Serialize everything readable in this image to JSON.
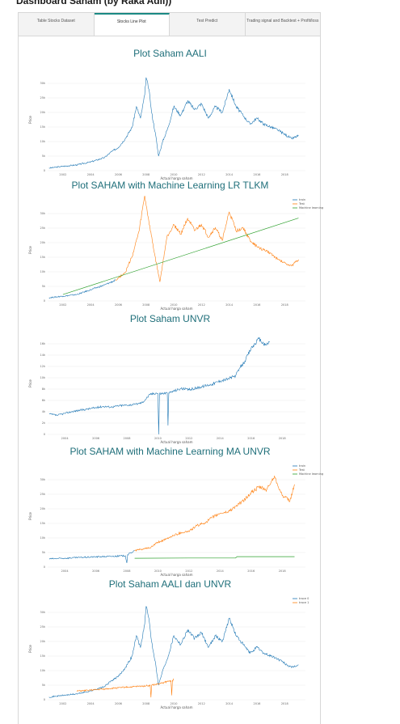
{
  "page": {
    "title": "Dashboard Saham (by Raka Adli))"
  },
  "tabs": [
    {
      "label": "Table Stocks Dataset",
      "active": false
    },
    {
      "label": "Stocks Line Plot",
      "active": true
    },
    {
      "label": "Test Predict",
      "active": false
    },
    {
      "label": "Trading signal and Backtest + Profit/loss",
      "active": false
    }
  ],
  "colors": {
    "blue": "#1f77b4",
    "orange": "#ff7f0e",
    "green": "#2ca02c",
    "title": "#1f6f7a",
    "tab_accent": "#1b8a84"
  },
  "chart_data": [
    {
      "type": "line",
      "title": "Plot Saham AALI",
      "xlabel": "Actual harga saham",
      "ylabel": "Price",
      "x_ticks": [
        "2002",
        "2004",
        "2006",
        "2008",
        "2010",
        "2012",
        "2014",
        "2016",
        "2018"
      ],
      "y_ticks": [
        "0",
        "5k",
        "10k",
        "15k",
        "20k",
        "25k",
        "30k"
      ],
      "ylim": [
        0,
        35000
      ],
      "series": [
        {
          "color": "#1f77b4",
          "x": [
            2001,
            2002,
            2003,
            2004,
            2005,
            2005.5,
            2006,
            2006.5,
            2007,
            2007.3,
            2007.6,
            2007.9,
            2008.0,
            2008.2,
            2008.4,
            2008.7,
            2008.9,
            2009.2,
            2009.6,
            2010,
            2010.5,
            2011,
            2011.5,
            2012,
            2012.5,
            2013,
            2013.5,
            2014,
            2014.5,
            2015,
            2015.5,
            2016,
            2016.5,
            2017,
            2017.5,
            2018,
            2018.5,
            2019
          ],
          "y": [
            900,
            1500,
            2000,
            3000,
            4500,
            6500,
            8000,
            11000,
            15000,
            22000,
            18000,
            26000,
            32000,
            28000,
            20000,
            12000,
            5000,
            10000,
            15000,
            22000,
            19000,
            24000,
            21000,
            23000,
            18000,
            22000,
            20000,
            28000,
            22000,
            19000,
            16000,
            18000,
            16000,
            15000,
            14000,
            12500,
            11000,
            12000
          ]
        }
      ]
    },
    {
      "type": "line",
      "title": "Plot SAHAM with Machine Learning LR TLKM",
      "xlabel": "Actual harga saham",
      "ylabel": "Price",
      "x_ticks": [
        "2002",
        "2004",
        "2006",
        "2008",
        "2010",
        "2012",
        "2014",
        "2016",
        "2018"
      ],
      "y_ticks": [
        "0",
        "5k",
        "10k",
        "15k",
        "20k",
        "25k",
        "30k"
      ],
      "ylim": [
        0,
        32000
      ],
      "legend": [
        "train",
        "Test",
        "Machine learning"
      ],
      "legend_position": "top-right",
      "series": [
        {
          "name": "train",
          "color": "#1f77b4",
          "x": [
            2001,
            2002,
            2003,
            2004,
            2005,
            2005.8
          ],
          "y": [
            1000,
            1500,
            2000,
            3500,
            5000,
            6500
          ]
        },
        {
          "name": "Test",
          "color": "#ff7f0e",
          "x": [
            2005.8,
            2006.5,
            2007,
            2007.5,
            2007.9,
            2008.2,
            2008.6,
            2009,
            2009.5,
            2010,
            2010.5,
            2011,
            2011.5,
            2012,
            2012.5,
            2013,
            2013.5,
            2014,
            2014.5,
            2015,
            2015.5,
            2016,
            2016.5,
            2017,
            2017.5,
            2018,
            2018.5,
            2019
          ],
          "y": [
            6500,
            9000,
            14000,
            22000,
            33000,
            25000,
            15000,
            6000,
            20000,
            24000,
            21000,
            26000,
            22000,
            24000,
            20000,
            23000,
            19000,
            28000,
            22000,
            23000,
            19000,
            17000,
            16000,
            15000,
            13000,
            12000,
            11000,
            13000
          ]
        },
        {
          "name": "Machine learning",
          "color": "#2ca02c",
          "x": [
            2002,
            2019
          ],
          "y": [
            2000,
            26000
          ]
        }
      ]
    },
    {
      "type": "line",
      "title": "Plot Saham UNVR",
      "xlabel": "Actual harga saham",
      "ylabel": "Price",
      "x_ticks": [
        "2004",
        "2006",
        "2008",
        "2010",
        "2012",
        "2014",
        "2016",
        "2018"
      ],
      "y_ticks": [
        "0",
        "2k",
        "4k",
        "6k",
        "8k",
        "10k",
        "12k",
        "14k",
        "16k"
      ],
      "ylim": [
        0,
        16000
      ],
      "series": [
        {
          "color": "#1f77b4",
          "x": [
            2003,
            2003.5,
            2004,
            2004.5,
            2005,
            2005.5,
            2006,
            2006.5,
            2007,
            2007.5,
            2008,
            2008.5,
            2009,
            2009.5,
            2009.9,
            2010,
            2010.05,
            2010.1,
            2010.6,
            2010.65,
            2010.7,
            2011,
            2011.5,
            2012,
            2012.5,
            2013,
            2013.5,
            2014,
            2014.5,
            2015,
            2015.3,
            2015.6,
            2016,
            2016.5,
            2016.9,
            2017.2
          ],
          "y": [
            3200,
            3000,
            3300,
            3600,
            3800,
            4000,
            4200,
            4400,
            4300,
            4500,
            4600,
            4700,
            5000,
            6300,
            6500,
            6400,
            0,
            6400,
            6500,
            1400,
            6500,
            6800,
            7200,
            7000,
            7300,
            7600,
            7900,
            8400,
            8700,
            9200,
            10500,
            11500,
            13500,
            15000,
            14000,
            14500
          ]
        }
      ]
    },
    {
      "type": "line",
      "title": "Plot SAHAM with Machine Learning MA UNVR",
      "xlabel": "Actual harga saham",
      "ylabel": "Price",
      "x_ticks": [
        "2004",
        "2006",
        "2008",
        "2010",
        "2012",
        "2014",
        "2016",
        "2018"
      ],
      "y_ticks": [
        "0",
        "5k",
        "10k",
        "15k",
        "20k",
        "25k",
        "30k"
      ],
      "ylim": [
        0,
        37000
      ],
      "legend": [
        "train",
        "Test",
        "Machine learning"
      ],
      "legend_position": "top-right",
      "series": [
        {
          "name": "train",
          "color": "#1f77b4",
          "x": [
            2003,
            2004,
            2005,
            2006,
            2007,
            2007.9,
            2008,
            2008.05,
            2008.5
          ],
          "y": [
            3000,
            3200,
            3500,
            3700,
            3900,
            4100,
            1500,
            4500,
            6000
          ]
        },
        {
          "name": "Test",
          "color": "#ff7f0e",
          "x": [
            2008.5,
            2009,
            2009.5,
            2010,
            2010.5,
            2011,
            2011.5,
            2012,
            2012.5,
            2013,
            2013.5,
            2014,
            2014.5,
            2015,
            2015.5,
            2016,
            2016.5,
            2017,
            2017.5,
            2018,
            2018.5,
            2018.8
          ],
          "y": [
            6000,
            6500,
            7000,
            9000,
            10000,
            11500,
            12500,
            13000,
            15000,
            16000,
            18000,
            19500,
            20000,
            22000,
            24000,
            27000,
            29000,
            28000,
            33000,
            26000,
            24000,
            30000
          ]
        },
        {
          "name": "Machine learning",
          "color": "#2ca02c",
          "x": [
            2008.5,
            2012,
            2015,
            2015.1,
            2018.8
          ],
          "y": [
            3200,
            3300,
            3300,
            3800,
            3800
          ]
        }
      ]
    },
    {
      "type": "line",
      "title": "Plot Saham AALI dan UNVR",
      "xlabel": "Actual harga saham",
      "ylabel": "Price",
      "x_ticks": [
        "2002",
        "2004",
        "2006",
        "2008",
        "2010",
        "2012",
        "2014",
        "2016",
        "2018"
      ],
      "y_ticks": [
        "0",
        "5k",
        "10k",
        "15k",
        "20k",
        "25k",
        "30k"
      ],
      "ylim": [
        0,
        35000
      ],
      "legend": [
        "trace 0",
        "trace 1"
      ],
      "legend_position": "top-right",
      "series": [
        {
          "name": "trace 0",
          "color": "#1f77b4",
          "x": [
            2001,
            2002,
            2003,
            2004,
            2005,
            2005.5,
            2006,
            2006.5,
            2007,
            2007.3,
            2007.6,
            2007.9,
            2008.0,
            2008.2,
            2008.4,
            2008.7,
            2008.9,
            2009.2,
            2009.6,
            2010,
            2010.5,
            2011,
            2011.5,
            2012,
            2012.5,
            2013,
            2013.5,
            2014,
            2014.5,
            2015,
            2015.5,
            2016,
            2016.5,
            2017,
            2017.5,
            2018,
            2018.5,
            2019
          ],
          "y": [
            900,
            1500,
            2000,
            3000,
            4500,
            6500,
            8000,
            11000,
            15000,
            22000,
            18000,
            26000,
            32000,
            28000,
            20000,
            12000,
            5000,
            10000,
            15000,
            22000,
            19000,
            24000,
            21000,
            23000,
            18000,
            22000,
            20000,
            28000,
            22000,
            19000,
            16000,
            18000,
            16000,
            15000,
            14000,
            12500,
            11000,
            12000
          ]
        },
        {
          "name": "trace 1",
          "color": "#ff7f0e",
          "x": [
            2003,
            2003.5,
            2004,
            2004.5,
            2005,
            2005.5,
            2006,
            2006.5,
            2007,
            2007.5,
            2008,
            2008.3,
            2008.35,
            2008.4,
            2009,
            2009.5,
            2009.8,
            2009.85,
            2009.9,
            2010
          ],
          "y": [
            3000,
            3100,
            3300,
            3500,
            3700,
            3900,
            4100,
            4300,
            4400,
            4600,
            4800,
            4900,
            800,
            5000,
            5500,
            6200,
            6500,
            1500,
            6600,
            7000
          ]
        }
      ]
    }
  ]
}
